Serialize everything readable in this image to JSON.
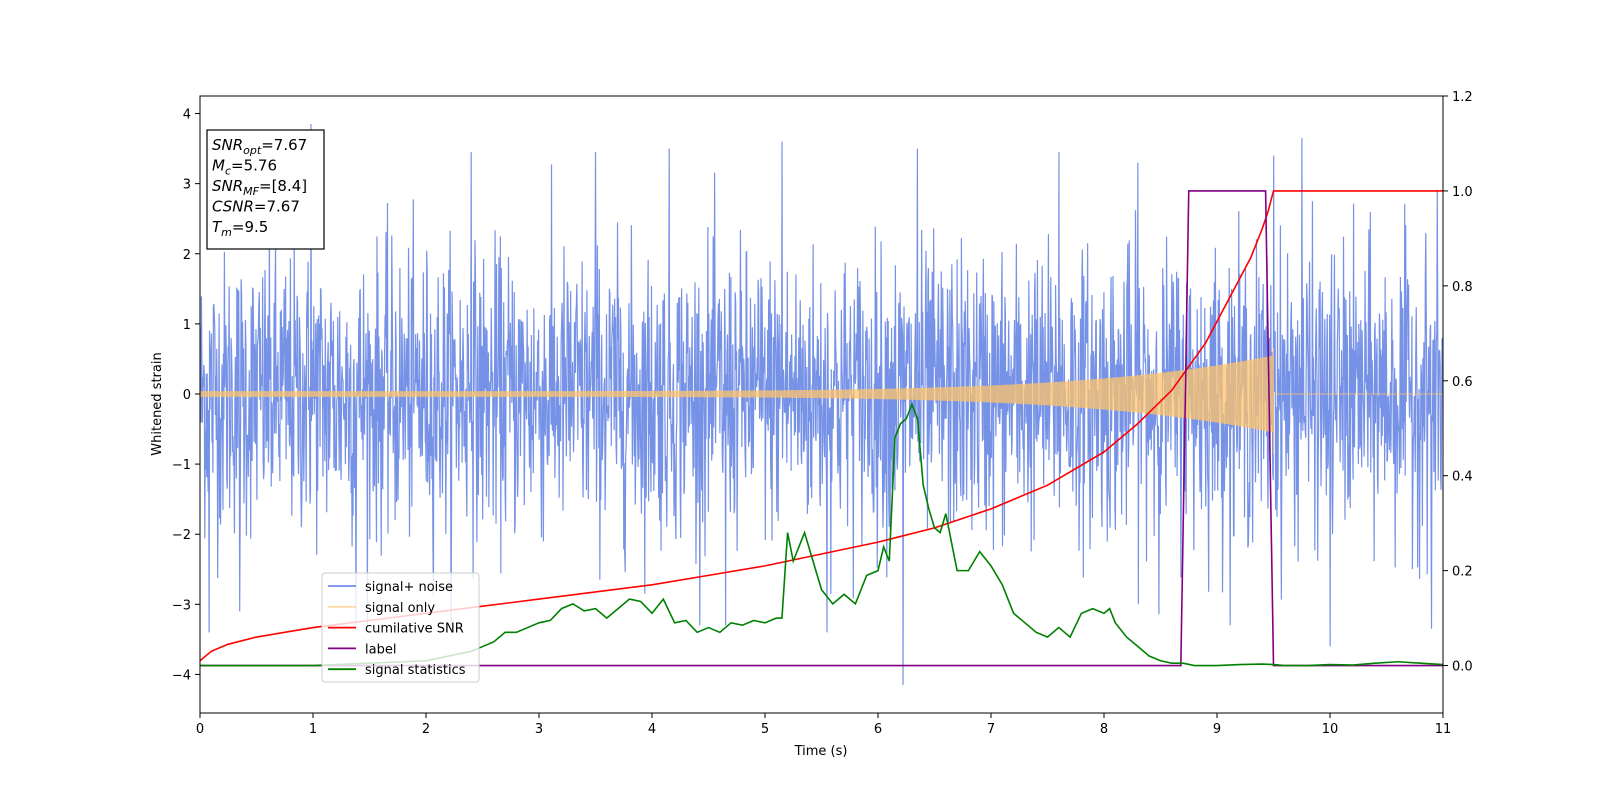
{
  "chart_data": {
    "type": "line",
    "title": "",
    "xlabel": "Time (s)",
    "ylabel": "Whitened strain",
    "ylabel_right": "",
    "xlim": [
      0,
      11
    ],
    "ylim": [
      -4.55,
      4.25
    ],
    "ylim_right": [
      -0.1,
      1.2
    ],
    "x_ticks": [
      0,
      1,
      2,
      3,
      4,
      5,
      6,
      7,
      8,
      9,
      10,
      11
    ],
    "y_ticks": [
      -4,
      -3,
      -2,
      -1,
      0,
      1,
      2,
      3,
      4
    ],
    "y_right_ticks": [
      0.0,
      0.2,
      0.4,
      0.6,
      0.8,
      1.0,
      1.2
    ],
    "grid": false,
    "legend_position": "lower-left",
    "series": [
      {
        "name": "signal+ noise",
        "axis": "left",
        "color": "#6f8ce6",
        "style": "noise",
        "sigma": 1.0,
        "range": [
          0,
          11
        ],
        "peaks": [
          [
            0.98,
            3.85
          ],
          [
            0.08,
            -3.4
          ],
          [
            6.22,
            -4.15
          ],
          [
            5.15,
            3.6
          ],
          [
            9.75,
            3.65
          ],
          [
            10.0,
            -3.6
          ],
          [
            4.15,
            3.5
          ],
          [
            3.5,
            3.45
          ],
          [
            2.4,
            3.45
          ],
          [
            6.35,
            3.5
          ],
          [
            7.6,
            3.45
          ],
          [
            8.3,
            3.3
          ],
          [
            9.5,
            3.4
          ],
          [
            10.9,
            -3.35
          ],
          [
            1.38,
            -3.3
          ],
          [
            0.35,
            -3.1
          ],
          [
            4.65,
            -3.3
          ],
          [
            5.55,
            -3.4
          ]
        ]
      },
      {
        "name": "signal only",
        "axis": "left",
        "color": "#ffc36b",
        "style": "chirp",
        "range": [
          0,
          9.5
        ],
        "amplitude_start": 0.04,
        "amplitude_end": 0.55
      },
      {
        "name": "cumilative SNR",
        "axis": "right",
        "color": "#ff0000",
        "x": [
          0,
          0.1,
          0.25,
          0.5,
          1,
          1.5,
          2,
          2.5,
          3,
          3.5,
          4,
          4.5,
          5,
          5.5,
          6,
          6.5,
          7,
          7.5,
          8,
          8.3,
          8.6,
          8.9,
          9.1,
          9.3,
          9.4,
          9.45,
          9.5,
          11
        ],
        "y": [
          0.01,
          0.03,
          0.045,
          0.06,
          0.08,
          0.095,
          0.11,
          0.125,
          0.14,
          0.155,
          0.17,
          0.19,
          0.21,
          0.235,
          0.26,
          0.29,
          0.33,
          0.38,
          0.45,
          0.51,
          0.58,
          0.68,
          0.77,
          0.86,
          0.92,
          0.955,
          1.0,
          1.0
        ]
      },
      {
        "name": "label",
        "axis": "right",
        "color": "#800080",
        "x": [
          0,
          8.68,
          8.75,
          9.43,
          9.5,
          11
        ],
        "y": [
          0,
          0,
          1,
          1,
          0,
          0
        ]
      },
      {
        "name": "signal statistics",
        "axis": "right",
        "color": "#008000",
        "x": [
          0,
          0.5,
          1,
          1.5,
          2,
          2.2,
          2.4,
          2.5,
          2.6,
          2.7,
          2.8,
          2.9,
          3.0,
          3.1,
          3.2,
          3.3,
          3.4,
          3.5,
          3.6,
          3.7,
          3.8,
          3.9,
          4.0,
          4.1,
          4.2,
          4.3,
          4.4,
          4.5,
          4.6,
          4.7,
          4.8,
          4.9,
          5.0,
          5.1,
          5.15,
          5.2,
          5.25,
          5.3,
          5.35,
          5.4,
          5.5,
          5.6,
          5.7,
          5.8,
          5.9,
          6.0,
          6.05,
          6.1,
          6.15,
          6.2,
          6.25,
          6.3,
          6.35,
          6.4,
          6.45,
          6.5,
          6.55,
          6.6,
          6.7,
          6.8,
          6.9,
          7.0,
          7.1,
          7.2,
          7.3,
          7.4,
          7.5,
          7.6,
          7.7,
          7.8,
          7.9,
          8.0,
          8.05,
          8.1,
          8.2,
          8.3,
          8.4,
          8.5,
          8.6,
          8.7,
          8.8,
          8.9,
          9.0,
          9.2,
          9.4,
          9.5,
          9.6,
          9.8,
          10.0,
          10.2,
          10.4,
          10.6,
          10.8,
          11.0
        ],
        "y": [
          0.0,
          0.0,
          0.0,
          0.005,
          0.01,
          0.02,
          0.03,
          0.04,
          0.05,
          0.07,
          0.07,
          0.08,
          0.09,
          0.095,
          0.12,
          0.13,
          0.115,
          0.12,
          0.1,
          0.12,
          0.14,
          0.135,
          0.11,
          0.14,
          0.09,
          0.095,
          0.07,
          0.08,
          0.07,
          0.09,
          0.085,
          0.095,
          0.09,
          0.1,
          0.1,
          0.28,
          0.22,
          0.25,
          0.28,
          0.24,
          0.16,
          0.13,
          0.15,
          0.13,
          0.19,
          0.2,
          0.25,
          0.22,
          0.48,
          0.51,
          0.52,
          0.55,
          0.52,
          0.38,
          0.33,
          0.29,
          0.28,
          0.32,
          0.2,
          0.2,
          0.24,
          0.21,
          0.17,
          0.11,
          0.09,
          0.07,
          0.06,
          0.08,
          0.06,
          0.11,
          0.12,
          0.11,
          0.12,
          0.09,
          0.06,
          0.04,
          0.02,
          0.01,
          0.005,
          0.005,
          0.0,
          0.0,
          0.0,
          0.002,
          0.003,
          0.002,
          0.0,
          0.0,
          0.002,
          0.001,
          0.005,
          0.008,
          0.005,
          0.002
        ]
      }
    ],
    "annotation_box": {
      "position": "top-left",
      "lines": [
        {
          "base": "SNR",
          "sub": "opt",
          "value": "=7.67"
        },
        {
          "base": "M",
          "sub": "c",
          "value": "=5.76"
        },
        {
          "base": "SNR",
          "sub": "MF",
          "value": "=[8.4]"
        },
        {
          "base": "CSNR",
          "sub": "",
          "value": "=7.67"
        },
        {
          "base": "T",
          "sub": "m",
          "value": "=9.5"
        }
      ]
    }
  }
}
